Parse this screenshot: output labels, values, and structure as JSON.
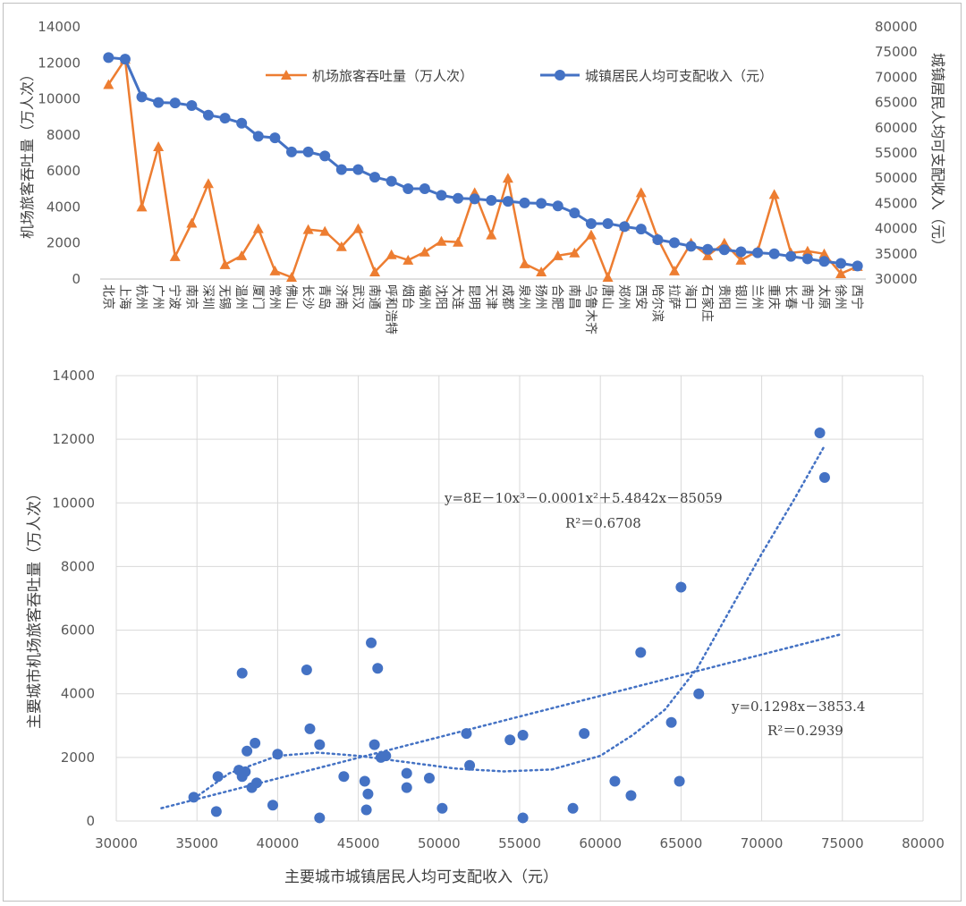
{
  "chart_data": [
    {
      "type": "line",
      "categories": [
        "北京",
        "上海",
        "杭州",
        "广州",
        "宁波",
        "南京",
        "深圳",
        "无锡",
        "温州",
        "厦门",
        "常州",
        "佛山",
        "长沙",
        "青岛",
        "济南",
        "武汉",
        "南通",
        "呼和浩特",
        "烟台",
        "福州",
        "沈阳",
        "大连",
        "昆明",
        "天津",
        "成都",
        "泉州",
        "扬州",
        "合肥",
        "南昌",
        "乌鲁木齐",
        "唐山",
        "郑州",
        "西安",
        "哈尔滨",
        "拉萨",
        "海口",
        "石家庄",
        "贵阳",
        "银川",
        "兰州",
        "重庆",
        "长春",
        "南宁",
        "太原",
        "徐州",
        "西宁"
      ],
      "series": [
        {
          "name": "机场旅客吞吐量（万人次）",
          "axis": "left",
          "color": "#ED7D31",
          "marker": "triangle",
          "values": [
            10800,
            12200,
            4000,
            7350,
            1250,
            3100,
            5300,
            800,
            1300,
            2800,
            450,
            100,
            2750,
            2650,
            1800,
            2800,
            400,
            1350,
            1050,
            1500,
            2100,
            2050,
            4800,
            2450,
            5600,
            850,
            400,
            1300,
            1450,
            2450,
            100,
            2950,
            4800,
            2250,
            450,
            2000,
            1300,
            2000,
            1050,
            1550,
            4700,
            1450,
            1550,
            1400,
            300,
            700
          ]
        },
        {
          "name": "城镇居民人均可支配收入（元）",
          "axis": "right",
          "color": "#4472C4",
          "marker": "circle",
          "values": [
            73900,
            73600,
            66100,
            65000,
            64900,
            64400,
            62500,
            61900,
            60900,
            58300,
            58000,
            55200,
            55200,
            54400,
            51700,
            51700,
            50200,
            49400,
            47900,
            47900,
            46600,
            46000,
            45900,
            45600,
            45400,
            45100,
            45000,
            44500,
            43100,
            41000,
            41000,
            40400,
            39900,
            37800,
            37200,
            36500,
            35900,
            35800,
            35400,
            35200,
            35000,
            34500,
            34000,
            33500,
            33100,
            32600
          ]
        }
      ],
      "ylabel": "机场旅客吞吐量（万人次）",
      "ylabel_right": "城镇居民人均可支配收入（元）",
      "ylim": [
        0,
        14000
      ],
      "yticks": [
        0,
        2000,
        4000,
        6000,
        8000,
        10000,
        12000,
        14000
      ],
      "ylim_right": [
        30000,
        80000
      ],
      "yticks_right": [
        30000,
        35000,
        40000,
        45000,
        50000,
        55000,
        60000,
        65000,
        70000,
        75000,
        80000
      ],
      "grid": false,
      "legend": "top"
    },
    {
      "type": "scatter",
      "xlabel": "主要城市城镇居民人均可支配收入（元）",
      "ylabel": "主要城市机场旅客吞吐量（万人次）",
      "xlim": [
        30000,
        80000
      ],
      "xticks": [
        30000,
        35000,
        40000,
        45000,
        50000,
        55000,
        60000,
        65000,
        70000,
        75000,
        80000
      ],
      "ylim": [
        0,
        14000
      ],
      "yticks": [
        0,
        2000,
        4000,
        6000,
        8000,
        10000,
        12000,
        14000
      ],
      "grid": true,
      "color": "#4472C4",
      "points": [
        [
          73600,
          12200
        ],
        [
          73900,
          10800
        ],
        [
          65000,
          7350
        ],
        [
          62500,
          5300
        ],
        [
          66100,
          4000
        ],
        [
          64400,
          3100
        ],
        [
          59000,
          2750
        ],
        [
          60900,
          1250
        ],
        [
          61900,
          800
        ],
        [
          64900,
          1250
        ],
        [
          58300,
          400
        ],
        [
          45800,
          5600
        ],
        [
          46200,
          4800
        ],
        [
          41800,
          4750
        ],
        [
          37800,
          4650
        ],
        [
          42000,
          2900
        ],
        [
          42600,
          2400
        ],
        [
          46000,
          2400
        ],
        [
          46400,
          2000
        ],
        [
          46700,
          2050
        ],
        [
          38600,
          2450
        ],
        [
          38100,
          2200
        ],
        [
          40000,
          2100
        ],
        [
          51700,
          2750
        ],
        [
          54400,
          2550
        ],
        [
          55200,
          2700
        ],
        [
          51900,
          1750
        ],
        [
          48000,
          1500
        ],
        [
          49400,
          1350
        ],
        [
          44100,
          1400
        ],
        [
          45400,
          1250
        ],
        [
          45600,
          850
        ],
        [
          48000,
          1050
        ],
        [
          37600,
          1600
        ],
        [
          37800,
          1400
        ],
        [
          38000,
          1550
        ],
        [
          36300,
          1400
        ],
        [
          38400,
          1050
        ],
        [
          38700,
          1200
        ],
        [
          34800,
          750
        ],
        [
          36200,
          300
        ],
        [
          39700,
          500
        ],
        [
          42600,
          100
        ],
        [
          45500,
          350
        ],
        [
          50200,
          400
        ],
        [
          55200,
          100
        ]
      ],
      "trendlines": [
        {
          "kind": "polynomial",
          "equation": "y=8E－10x³－0.0001x²＋5.4842x－85059",
          "r2": "R²＝0.6708",
          "coeffs": [
            8e-10,
            -0.0001,
            5.4842,
            -85059
          ],
          "range": [
            34800,
            73900
          ]
        },
        {
          "kind": "linear",
          "equation": "y=0.1298x－3853.4",
          "r2": "R²＝0.2939",
          "coeffs": [
            0.1298,
            -3853.4
          ],
          "range": [
            32800,
            75000
          ]
        }
      ]
    }
  ]
}
